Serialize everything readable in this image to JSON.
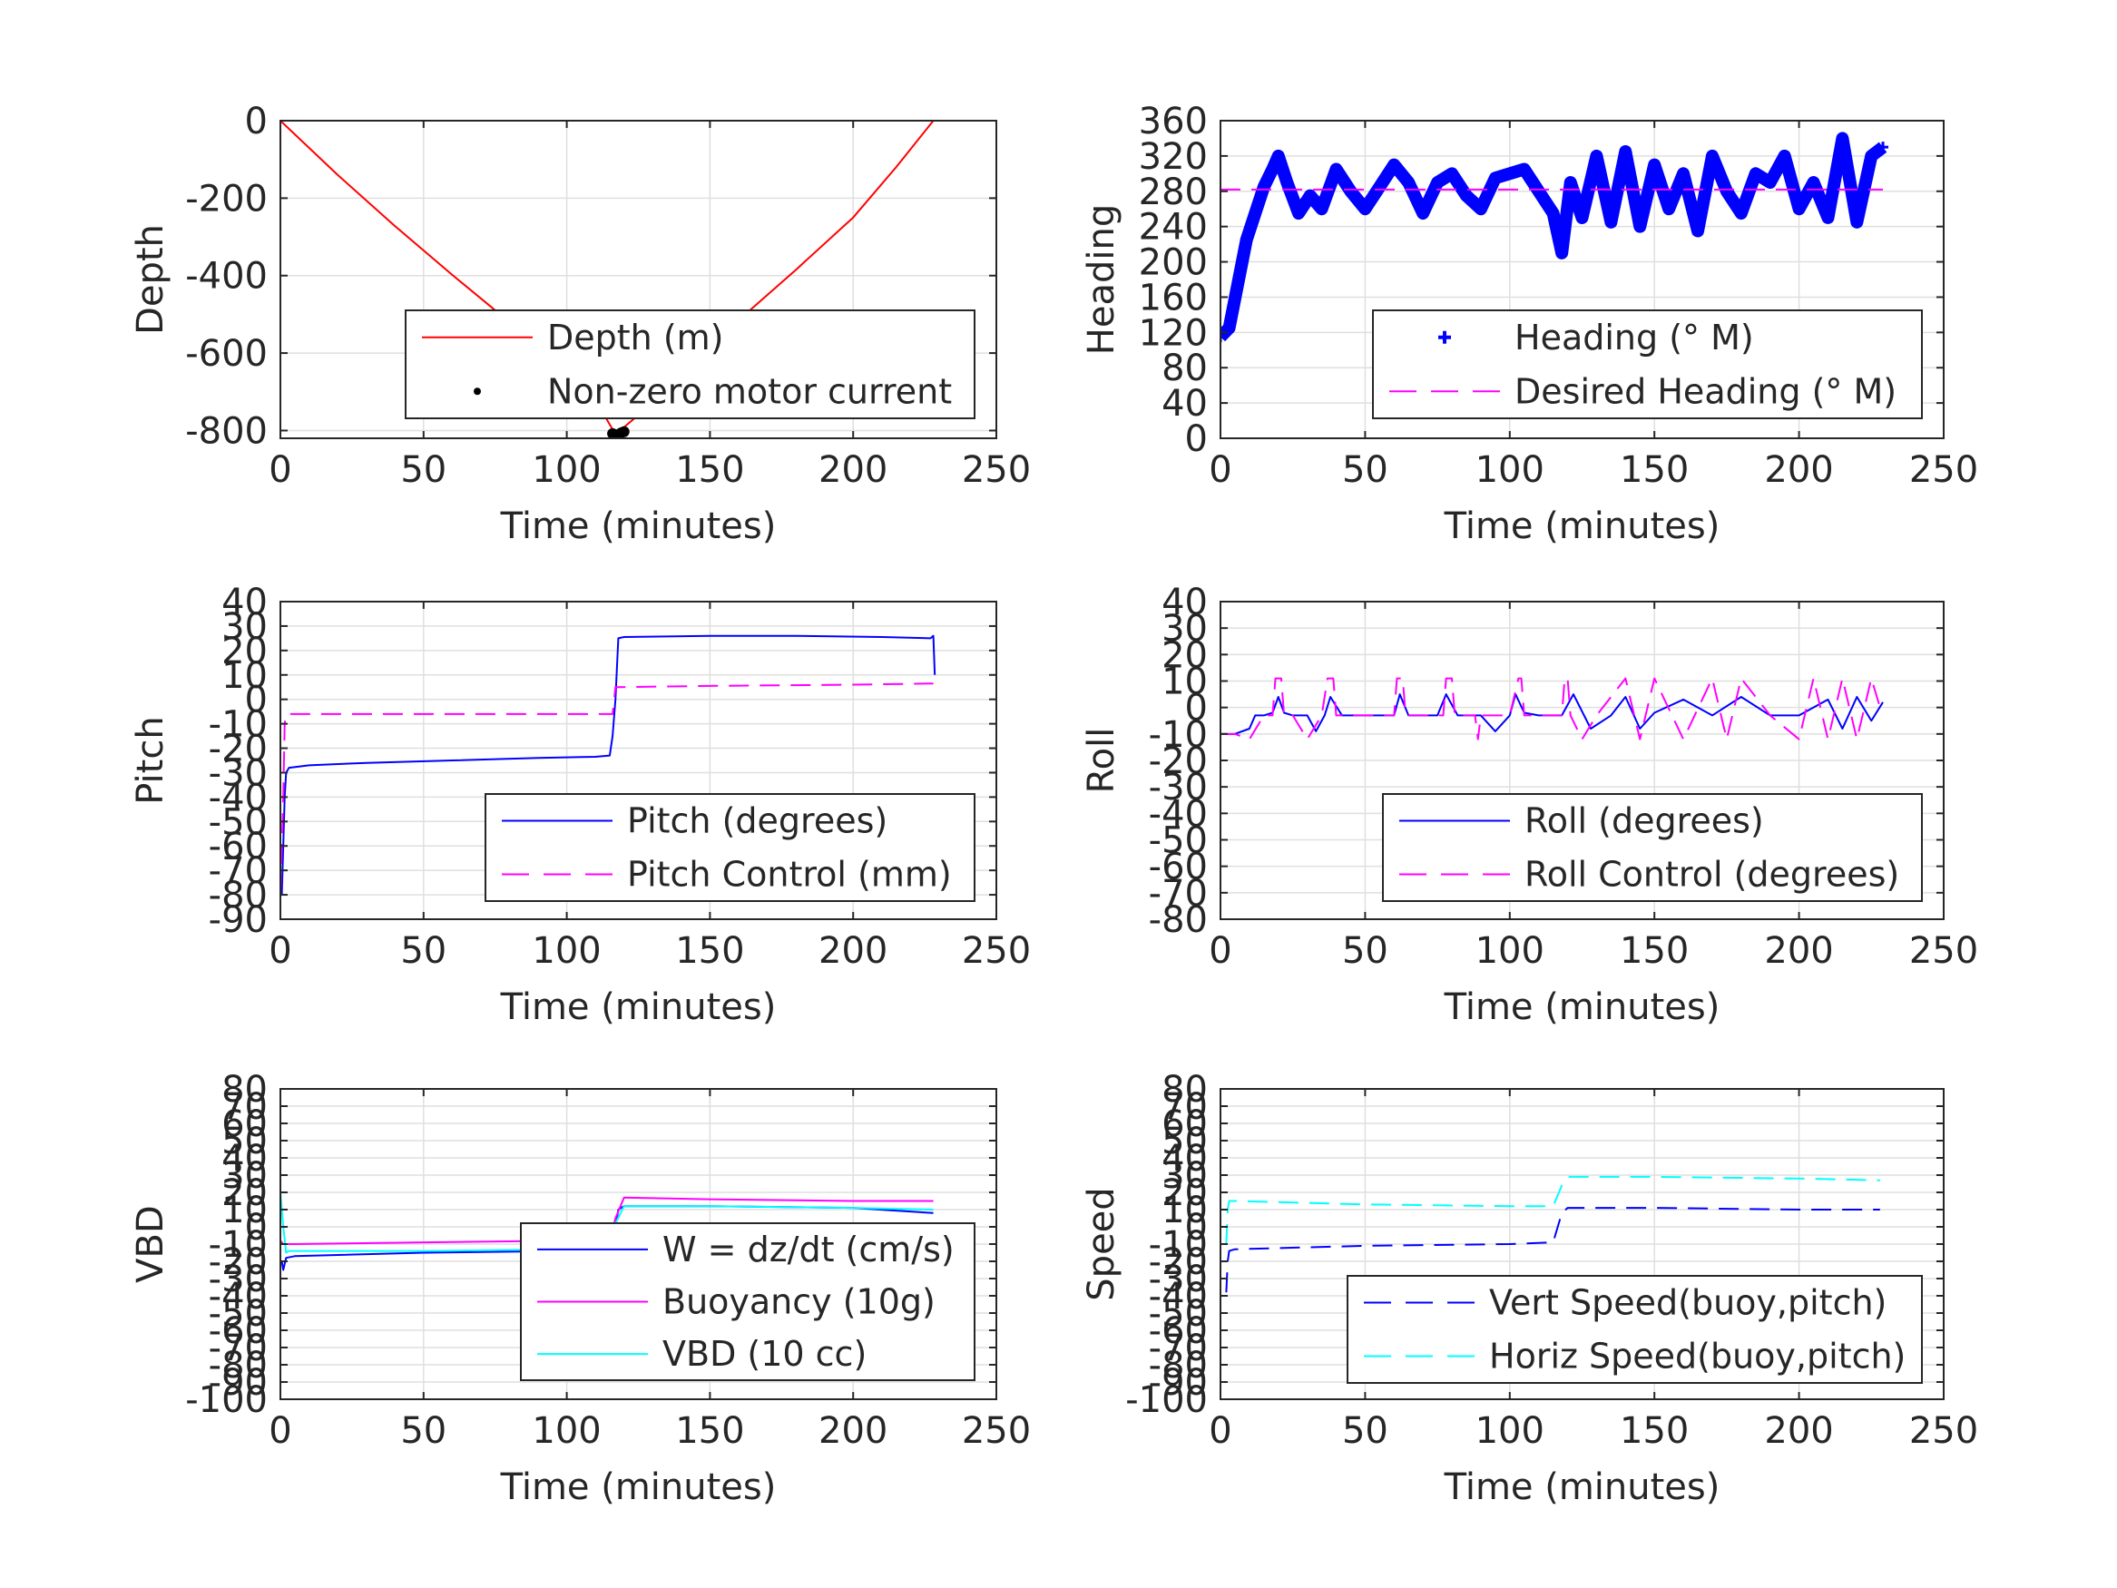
{
  "chart_data": [
    {
      "type": "line",
      "xlabel": "Time (minutes)",
      "ylabel": "Depth",
      "xlim": [
        0,
        250
      ],
      "ylim": [
        -820,
        0
      ],
      "xticks": [
        0,
        50,
        100,
        150,
        200,
        250
      ],
      "yticks": [
        0,
        -200,
        -400,
        -600,
        -800
      ],
      "grid": true,
      "legend": "bottom-right",
      "series": [
        {
          "name": "Depth (m)",
          "color": "#ff0000",
          "style": "solid",
          "x": [
            0,
            20,
            40,
            60,
            80,
            100,
            110,
            117,
            125,
            140,
            160,
            180,
            200,
            215,
            228
          ],
          "y": [
            0,
            -140,
            -272,
            -398,
            -520,
            -650,
            -720,
            -810,
            -760,
            -655,
            -515,
            -385,
            -250,
            -120,
            0
          ]
        },
        {
          "name": "Non-zero motor current",
          "color": "#000000",
          "style": "dots",
          "x": [
            116,
            117,
            118,
            119,
            120
          ],
          "y": [
            -808,
            -812,
            -810,
            -806,
            -803
          ]
        }
      ]
    },
    {
      "type": "line",
      "xlabel": "Time (minutes)",
      "ylabel": "Heading",
      "xlim": [
        0,
        250
      ],
      "ylim": [
        0,
        360
      ],
      "xticks": [
        0,
        50,
        100,
        150,
        200,
        250
      ],
      "yticks": [
        0,
        40,
        80,
        120,
        160,
        200,
        240,
        280,
        320,
        360
      ],
      "grid": true,
      "legend": "bottom-right",
      "series": [
        {
          "name": "Heading (° M)",
          "color": "#0000ff",
          "style": "plus",
          "x": [
            0,
            3,
            6,
            9,
            12,
            15,
            18,
            20,
            23,
            27,
            31,
            35,
            40,
            45,
            50,
            55,
            60,
            65,
            70,
            75,
            80,
            85,
            90,
            95,
            100,
            105,
            110,
            115,
            118,
            121,
            125,
            130,
            135,
            140,
            145,
            150,
            155,
            160,
            165,
            170,
            175,
            180,
            185,
            190,
            195,
            200,
            205,
            210,
            215,
            220,
            225,
            229
          ],
          "y": [
            115,
            125,
            175,
            225,
            255,
            285,
            305,
            320,
            290,
            255,
            275,
            260,
            305,
            280,
            260,
            285,
            310,
            290,
            255,
            290,
            300,
            275,
            260,
            295,
            300,
            305,
            280,
            255,
            210,
            290,
            250,
            320,
            245,
            325,
            240,
            310,
            260,
            300,
            235,
            320,
            280,
            255,
            300,
            290,
            320,
            260,
            290,
            250,
            340,
            245,
            320,
            330
          ]
        },
        {
          "name": "Desired Heading (° M)",
          "color": "#ff00ff",
          "style": "dash",
          "x": [
            0,
            229
          ],
          "y": [
            282,
            282
          ]
        }
      ]
    },
    {
      "type": "line",
      "xlabel": "Time (minutes)",
      "ylabel": "Pitch",
      "xlim": [
        0,
        250
      ],
      "ylim": [
        -90,
        40
      ],
      "xticks": [
        0,
        50,
        100,
        150,
        200,
        250
      ],
      "yticks": [
        40,
        30,
        20,
        10,
        0,
        -10,
        -20,
        -30,
        -40,
        -50,
        -60,
        -70,
        -80,
        -90
      ],
      "grid": true,
      "legend": "bottom-right",
      "series": [
        {
          "name": "Pitch (degrees)",
          "color": "#0000ff",
          "style": "solid",
          "x": [
            0.5,
            1,
            1.5,
            2,
            3,
            10,
            30,
            60,
            90,
            110,
            115,
            116,
            117,
            118,
            120,
            150,
            180,
            210,
            227,
            228,
            228.5
          ],
          "y": [
            -80,
            -60,
            -40,
            -30,
            -28,
            -27,
            -26,
            -25,
            -24,
            -23.5,
            -23,
            -15,
            0,
            25,
            25.5,
            26,
            26,
            25.5,
            25,
            26,
            10
          ]
        },
        {
          "name": "Pitch Control (mm)",
          "color": "#ff00ff",
          "style": "dash",
          "x": [
            0,
            1,
            1.5,
            2,
            3,
            115,
            116,
            117,
            118,
            150,
            200,
            228
          ],
          "y": [
            -80,
            -40,
            -10,
            -6,
            -6,
            -6,
            -6,
            5,
            5,
            5.5,
            6,
            6.5
          ]
        }
      ]
    },
    {
      "type": "line",
      "xlabel": "Time (minutes)",
      "ylabel": "Roll",
      "xlim": [
        0,
        250
      ],
      "ylim": [
        -80,
        40
      ],
      "xticks": [
        0,
        50,
        100,
        150,
        200,
        250
      ],
      "yticks": [
        40,
        30,
        20,
        10,
        0,
        -10,
        -20,
        -30,
        -40,
        -50,
        -60,
        -70,
        -80
      ],
      "grid": true,
      "legend": "bottom-right",
      "series": [
        {
          "name": "Roll (degrees)",
          "color": "#0000ff",
          "style": "solid",
          "x": [
            0,
            5,
            10,
            12,
            15,
            18,
            20,
            22,
            25,
            30,
            33,
            36,
            38,
            42,
            50,
            60,
            62,
            65,
            70,
            75,
            78,
            82,
            90,
            95,
            100,
            102,
            105,
            110,
            115,
            118,
            122,
            128,
            135,
            140,
            145,
            150,
            160,
            170,
            180,
            190,
            200,
            210,
            215,
            220,
            225,
            229
          ],
          "y": [
            -10,
            -10,
            -8,
            -3,
            -3,
            -2,
            4,
            -2,
            -3,
            -3,
            -9,
            -3,
            4,
            -3,
            -3,
            -3,
            5,
            -3,
            -3,
            -3,
            5,
            -3,
            -3,
            -9,
            -3,
            5,
            -2,
            -3,
            -3,
            -3,
            5,
            -8,
            -3,
            4,
            -8,
            -2,
            3,
            -3,
            4,
            -3,
            -3,
            3,
            -8,
            4,
            -5,
            2
          ]
        },
        {
          "name": "Roll Control (degrees)",
          "color": "#ff00ff",
          "style": "dash",
          "x": [
            0,
            5,
            10,
            15,
            18,
            19,
            21,
            22,
            25,
            30,
            35,
            37,
            39,
            40,
            50,
            60,
            61,
            63,
            64,
            70,
            77,
            78,
            80,
            81,
            88,
            89,
            90,
            100,
            103,
            104,
            105,
            115,
            118,
            119,
            120,
            121,
            125,
            130,
            140,
            145,
            150,
            160,
            170,
            175,
            180,
            190,
            200,
            205,
            210,
            215,
            220,
            225,
            228
          ],
          "y": [
            -10,
            -10,
            -12,
            -3,
            -3,
            11,
            11,
            -3,
            -3,
            -12,
            -3,
            11,
            11,
            -3,
            -3,
            -3,
            11,
            11,
            -3,
            -3,
            -3,
            11,
            11,
            -3,
            -3,
            -12,
            -3,
            -3,
            11,
            11,
            -3,
            -3,
            -3,
            11,
            11,
            -3,
            -12,
            -3,
            11,
            -12,
            11,
            -12,
            11,
            -12,
            11,
            -3,
            -12,
            11,
            -12,
            11,
            -12,
            11,
            0
          ]
        }
      ]
    },
    {
      "type": "line",
      "xlabel": "Time (minutes)",
      "ylabel": "VBD",
      "xlim": [
        0,
        250
      ],
      "ylim": [
        -100,
        80
      ],
      "xticks": [
        0,
        50,
        100,
        150,
        200,
        250
      ],
      "yticks": [
        80,
        70,
        60,
        50,
        40,
        30,
        20,
        10,
        0,
        -10,
        -20,
        -30,
        -40,
        -50,
        -60,
        -70,
        -80,
        -90,
        -100
      ],
      "grid": true,
      "legend": "bottom-right",
      "series": [
        {
          "name": "W = dz/dt (cm/s)",
          "color": "#0000ff",
          "style": "solid",
          "x": [
            0.5,
            1,
            2,
            5,
            50,
            100,
            115,
            117,
            118,
            120,
            150,
            200,
            228
          ],
          "y": [
            -20,
            -25,
            -18,
            -17,
            -15,
            -14,
            -13,
            0,
            10,
            12,
            12,
            11,
            8
          ]
        },
        {
          "name": "Buoyancy (10g)",
          "color": "#ff00ff",
          "style": "solid",
          "x": [
            0,
            1,
            2,
            5,
            50,
            100,
            115,
            117,
            120,
            150,
            200,
            228
          ],
          "y": [
            -8,
            -10,
            -10,
            -10,
            -9,
            -8,
            -8,
            5,
            17,
            16,
            15,
            15
          ]
        },
        {
          "name": "VBD (10 cc)",
          "color": "#00ffff",
          "style": "solid",
          "x": [
            0,
            1,
            2,
            3,
            5,
            50,
            100,
            115,
            117,
            120,
            150,
            200,
            228
          ],
          "y": [
            20,
            0,
            -15,
            -14,
            -14,
            -14,
            -13,
            -12,
            2,
            12,
            12,
            11,
            10
          ]
        }
      ]
    },
    {
      "type": "line",
      "xlabel": "Time (minutes)",
      "ylabel": "Speed",
      "xlim": [
        0,
        250
      ],
      "ylim": [
        -100,
        80
      ],
      "xticks": [
        0,
        50,
        100,
        150,
        200,
        250
      ],
      "yticks": [
        80,
        70,
        60,
        50,
        40,
        30,
        20,
        10,
        0,
        -10,
        -20,
        -30,
        -40,
        -50,
        -60,
        -70,
        -80,
        -90,
        -100
      ],
      "grid": true,
      "legend": "bottom-right",
      "series": [
        {
          "name": "Vert Speed(buoy,pitch)",
          "color": "#0000ff",
          "style": "dash",
          "x": [
            2,
            2.5,
            3,
            5,
            50,
            100,
            115,
            118,
            120,
            150,
            200,
            228
          ],
          "y": [
            -38,
            -20,
            -14,
            -13,
            -11,
            -10,
            -9,
            8,
            11,
            11,
            10,
            10
          ]
        },
        {
          "name": "Horiz Speed(buoy,pitch)",
          "color": "#00ffff",
          "style": "dash",
          "x": [
            2,
            2.5,
            3,
            5,
            50,
            100,
            115,
            118,
            120,
            150,
            200,
            228
          ],
          "y": [
            -10,
            10,
            15,
            15,
            13,
            12,
            12,
            24,
            29,
            29,
            28,
            27
          ]
        }
      ]
    }
  ]
}
